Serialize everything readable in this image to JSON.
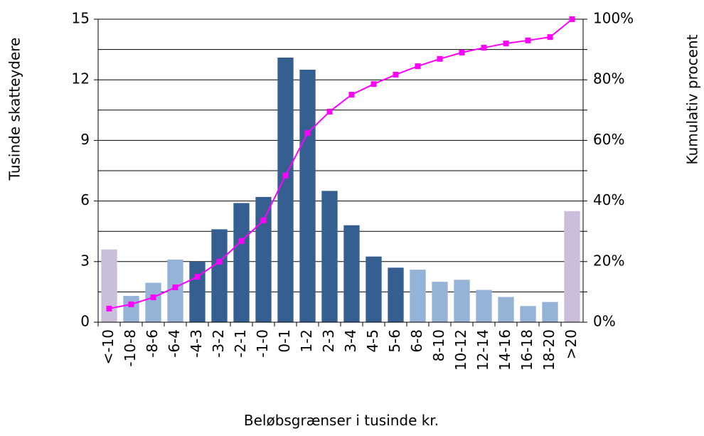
{
  "chart_data": {
    "type": "bar",
    "x_label": "Beløbsgrænser i tusinde kr.",
    "y_label": "Tusinde skatteydere",
    "y2_label": "Kumulativ procent",
    "categories": [
      "<-10",
      "-10-8",
      "-8-6",
      "-6-4",
      "-4-3",
      "-3-2",
      "-2-1",
      "-1-0",
      "0-1",
      "1-2",
      "2-3",
      "3-4",
      "4-5",
      "5-6",
      "6-8",
      "8-10",
      "10-12",
      "12-14",
      "14-16",
      "16-18",
      "18-20",
      ">20"
    ],
    "series": [
      {
        "type": "bar",
        "values": [
          3.6,
          1.3,
          1.95,
          3.1,
          3.0,
          4.6,
          5.9,
          6.2,
          13.1,
          12.5,
          6.5,
          4.8,
          3.25,
          2.7,
          2.6,
          2.0,
          2.1,
          1.6,
          1.25,
          0.8,
          1.0,
          5.5
        ],
        "colors": [
          "#c9bfdb",
          "#95b3d7",
          "#95b3d7",
          "#95b3d7",
          "#355f91",
          "#355f91",
          "#355f91",
          "#355f91",
          "#355f91",
          "#355f91",
          "#355f91",
          "#355f91",
          "#355f91",
          "#355f91",
          "#95b3d7",
          "#95b3d7",
          "#95b3d7",
          "#95b3d7",
          "#95b3d7",
          "#95b3d7",
          "#95b3d7",
          "#c9bfdb"
        ]
      },
      {
        "type": "line",
        "axis": "y2",
        "color": "#ff00ff",
        "values": [
          4.5,
          5.9,
          8.2,
          11.5,
          15,
          20,
          26.8,
          33.6,
          48.4,
          62.4,
          69.5,
          75.1,
          78.6,
          81.7,
          84.5,
          86.9,
          89,
          90.6,
          92,
          93,
          94.1,
          100
        ]
      }
    ],
    "ylim": [
      0,
      15
    ],
    "yticks": [
      0,
      3,
      6,
      9,
      12,
      15
    ],
    "y2lim": [
      0,
      100
    ],
    "y2ticks": [
      {
        "value": 0,
        "label": "0%"
      },
      {
        "value": 20,
        "label": "20%"
      },
      {
        "value": 40,
        "label": "40%"
      },
      {
        "value": 60,
        "label": "60%"
      },
      {
        "value": 80,
        "label": "80%"
      },
      {
        "value": 100,
        "label": "100%"
      }
    ],
    "y2minorticks": [
      10,
      30,
      50,
      70,
      90
    ],
    "grid": true
  }
}
